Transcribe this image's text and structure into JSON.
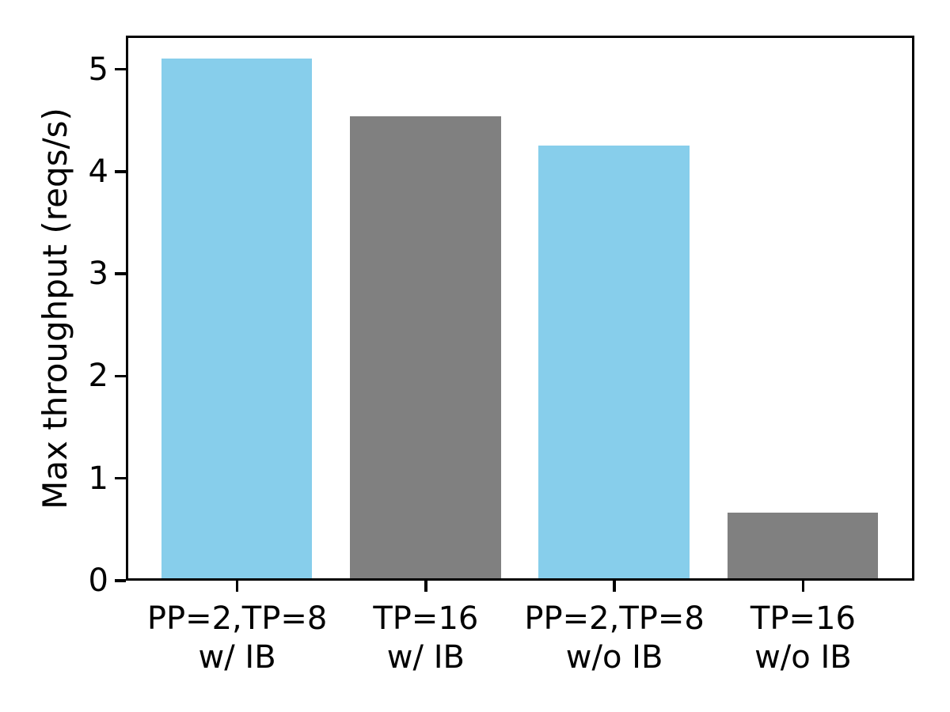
{
  "chart_data": {
    "type": "bar",
    "title": "",
    "xlabel": "",
    "ylabel": "Max throughput (reqs/s)",
    "categories": [
      {
        "line1": "PP=2,TP=8",
        "line2": "w/ IB"
      },
      {
        "line1": "TP=16",
        "line2": "w/ IB"
      },
      {
        "line1": "PP=2,TP=8",
        "line2": "w/o IB"
      },
      {
        "line1": "TP=16",
        "line2": "w/o IB"
      }
    ],
    "values": [
      5.08,
      4.52,
      4.23,
      0.64
    ],
    "bar_colors": [
      "#87CEEB",
      "#808080",
      "#87CEEB",
      "#808080"
    ],
    "yticks": [
      0,
      1,
      2,
      3,
      4,
      5
    ],
    "ylim": [
      0,
      5.33
    ],
    "xlim": [
      -0.59,
      3.59
    ],
    "bar_width_fraction": 0.8,
    "grid": false,
    "legend": null,
    "axis_color": "#000000",
    "background_color": "#ffffff"
  }
}
